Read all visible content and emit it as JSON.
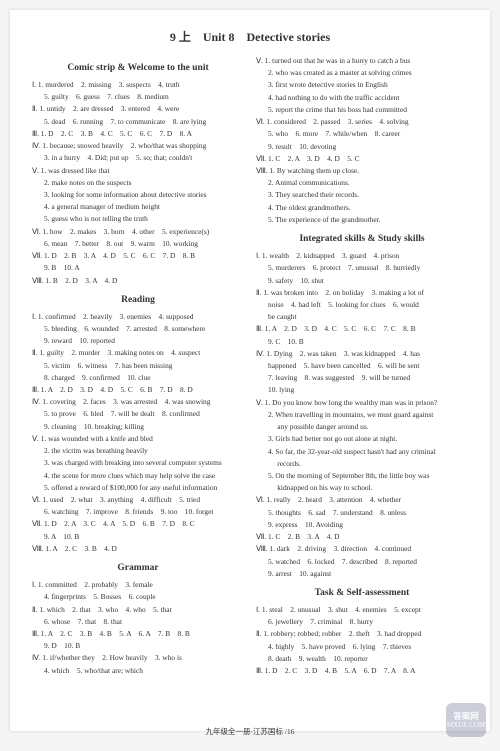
{
  "unitTitle": "9 上　Unit 8　Detective stories",
  "footer": "九年级全一册·江苏国标 /16",
  "watermark": {
    "top": "答案网",
    "bottom": "MXUE.COM"
  },
  "left": {
    "sections": [
      {
        "title": "Comic strip & Welcome to the unit",
        "lines": [
          {
            "t": "Ⅰ. 1. murdered　2. missing　3. suspects　4. truth"
          },
          {
            "t": "5. guilty　6. guess　7. clues　8. medium",
            "i": true
          },
          {
            "t": "Ⅱ. 1. untidy　2. are dressed　3. entered　4. were"
          },
          {
            "t": "5. dead　6. running　7. to communicate　8. are lying",
            "i": true
          },
          {
            "t": "Ⅲ. 1. D　2. C　3. B　4. C　5. C　6. C　7. D　8. A"
          },
          {
            "t": "Ⅳ. 1. because; snowed heavily　2. who/that was shopping"
          },
          {
            "t": "3. in a hurry　4. Did; put up　5. so; that; couldn't",
            "i": true
          },
          {
            "t": "Ⅴ. 1. was dressed like that"
          },
          {
            "t": "2. make notes on the suspects",
            "i": true
          },
          {
            "t": "3. looking for some information about detective stories",
            "i": true
          },
          {
            "t": "4. a general manager of medium height",
            "i": true
          },
          {
            "t": "5. guess who is not telling the truth",
            "i": true
          },
          {
            "t": "Ⅵ. 1. how　2. makes　3. born　4. other　5. experience(s)"
          },
          {
            "t": "6. mean　7. better　8. out　9. warm　10. working",
            "i": true
          },
          {
            "t": "Ⅶ. 1. D　2. B　3. A　4. D　5. C　6. C　7. D　8. B"
          },
          {
            "t": "9. B　10. A",
            "i": true
          },
          {
            "t": "Ⅷ. 1. B　2. D　3. A　4. D"
          }
        ]
      },
      {
        "title": "Reading",
        "lines": [
          {
            "t": "Ⅰ. 1. confirmed　2. heavily　3. enemies　4. supposed"
          },
          {
            "t": "5. bleeding　6. wounded　7. arrested　8. somewhere",
            "i": true
          },
          {
            "t": "9. reward　10. reported",
            "i": true
          },
          {
            "t": "Ⅱ. 1. guilty　2. murder　3. making notes on　4. suspect"
          },
          {
            "t": "5. victim　6. witness　7. has been missing",
            "i": true
          },
          {
            "t": "8. charged　9. confirmed　10. clue",
            "i": true
          },
          {
            "t": "Ⅲ. 1. A　2. D　3. D　4. D　5. C　6. B　7. D　8. D"
          },
          {
            "t": "Ⅳ. 1. covering　2. faces　3. was arrested　4. was snowing"
          },
          {
            "t": "5. to prove　6. bled　7. will be dealt　8. confirmed",
            "i": true
          },
          {
            "t": "9. cleaning　10. breaking; killing",
            "i": true
          },
          {
            "t": "Ⅴ. 1. was wounded with a knife and bled"
          },
          {
            "t": "2. the victim was breathing heavily",
            "i": true
          },
          {
            "t": "3. was charged with breaking into several computer systems",
            "i": true
          },
          {
            "t": "4. the scene for more clues which may help solve the case",
            "i": true
          },
          {
            "t": "5. offered a reward of $100,000 for any useful information",
            "i": true
          },
          {
            "t": "Ⅵ. 1. used　2. what　3. anything　4. difficult　5. tried"
          },
          {
            "t": "6. watching　7. improve　8. friends　9. too　10. forget",
            "i": true
          },
          {
            "t": "Ⅶ. 1. D　2. A　3. C　4. A　5. D　6. B　7. D　8. C"
          },
          {
            "t": "9. A　10. B",
            "i": true
          },
          {
            "t": "Ⅷ. 1. A　2. C　3. B　4. D"
          }
        ]
      },
      {
        "title": "Grammar",
        "lines": [
          {
            "t": "Ⅰ. 1. committed　2. probably　3. female"
          },
          {
            "t": "4. fingerprints　5. Bosses　6. couple",
            "i": true
          },
          {
            "t": "Ⅱ. 1. which　2. that　3. who　4. who　5. that"
          },
          {
            "t": "6. whose　7. that　8. that",
            "i": true
          },
          {
            "t": "Ⅲ. 1. A　2. C　3. B　4. B　5. A　6. A　7. B　8. B"
          },
          {
            "t": "9. D　10. B",
            "i": true
          },
          {
            "t": "Ⅳ. 1. if/whether they　2. How heavily　3. who is"
          },
          {
            "t": "4. which　5. who/that are; which",
            "i": true
          }
        ]
      }
    ]
  },
  "right": {
    "preLines": [
      {
        "t": "Ⅴ. 1. turned out that he was in a hurry to catch a bus"
      },
      {
        "t": "2. who was created as a master at solving crimes",
        "i": true
      },
      {
        "t": "3. first wrote detective stories in English",
        "i": true
      },
      {
        "t": "4. had nothing to do with the traffic accident",
        "i": true
      },
      {
        "t": "5. report the crime that his boss had committed",
        "i": true
      },
      {
        "t": "Ⅵ. 1. considered　2. passed　3. series　4. solving"
      },
      {
        "t": "5. who　6. more　7. while/when　8. career",
        "i": true
      },
      {
        "t": "9. result　10. devoting",
        "i": true
      },
      {
        "t": "Ⅶ. 1. C　2. A　3. D　4. D　5. C"
      },
      {
        "t": "Ⅷ. 1. By watching them up close."
      },
      {
        "t": "2. Animal communications.",
        "i": true
      },
      {
        "t": "3. They searched their records.",
        "i": true
      },
      {
        "t": "4. The oldest grandmothers.",
        "i": true
      },
      {
        "t": "5. The experience of the grandmother.",
        "i": true
      }
    ],
    "sections": [
      {
        "title": "Integrated skills & Study skills",
        "lines": [
          {
            "t": "Ⅰ. 1. wealth　2. kidnapped　3. guard　4. prison"
          },
          {
            "t": "5. murderers　6. protect　7. unusual　8. hurriedly",
            "i": true
          },
          {
            "t": "9. safety　10. shut",
            "i": true
          },
          {
            "t": "Ⅱ. 1. was broken into　2. on holiday　3. making a lot of"
          },
          {
            "t": "noise　4. had left　5. looking for clues　6. would",
            "i": true
          },
          {
            "t": "be caught",
            "i": true
          },
          {
            "t": "Ⅲ. 1. A　2. D　3. D　4. C　5. C　6. C　7. C　8. B"
          },
          {
            "t": "9. C　10. B",
            "i": true
          },
          {
            "t": "Ⅳ. 1. Dying　2. was taken　3. was kidnapped　4. has"
          },
          {
            "t": "happened　5. have been cancelled　6. will be sent",
            "i": true
          },
          {
            "t": "7. leaving　8. was suggested　9. will be turned",
            "i": true
          },
          {
            "t": "10. lying",
            "i": true
          },
          {
            "t": "Ⅴ. 1. Do you know how long the wealthy man was in prison?"
          },
          {
            "t": "2. When travelling in mountains, we must guard against",
            "i": true
          },
          {
            "t": "　 any possible danger around us.",
            "i": true
          },
          {
            "t": "3. Girls had better not go out alone at night.",
            "i": true
          },
          {
            "t": "4. So far, the 32-year-old suspect hasn't had any criminal",
            "i": true
          },
          {
            "t": "　 records.",
            "i": true
          },
          {
            "t": "5. On the morning of September 8th, the little boy was",
            "i": true
          },
          {
            "t": "　 kidnapped on his way to school.",
            "i": true
          },
          {
            "t": "Ⅵ. 1. really　2. heard　3. attention　4. whether"
          },
          {
            "t": "5. thoughts　6. sad　7. understand　8. unless",
            "i": true
          },
          {
            "t": "9. express　10. Avoiding",
            "i": true
          },
          {
            "t": "Ⅶ. 1. C　2. B　3. A　4. D"
          },
          {
            "t": "Ⅷ. 1. dark　2. driving　3. direction　4. continued"
          },
          {
            "t": "5. watched　6. locked　7. described　8. reported",
            "i": true
          },
          {
            "t": "9. arrest　10. against",
            "i": true
          }
        ]
      },
      {
        "title": "Task & Self-assessment",
        "lines": [
          {
            "t": "Ⅰ. 1. steal　2. unusual　3. shut　4. enemies　5. except"
          },
          {
            "t": "6. jewellery　7. criminal　8. hurry",
            "i": true
          },
          {
            "t": "Ⅱ. 1. robbery; robbed; robber　2. theft　3. had dropped"
          },
          {
            "t": "4. highly　5. have proved　6. lying　7. thieves",
            "i": true
          },
          {
            "t": "8. death　9. wealth　10. reporter",
            "i": true
          },
          {
            "t": "Ⅲ. 1. D　2. C　3. D　4. B　5. A　6. D　7. A　8. A"
          }
        ]
      }
    ]
  }
}
